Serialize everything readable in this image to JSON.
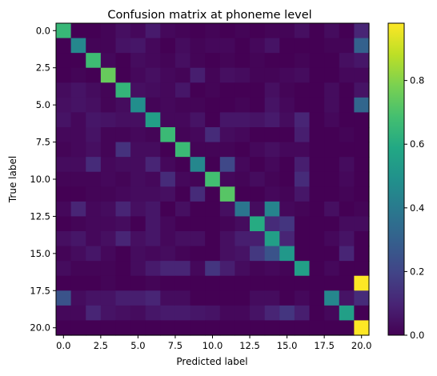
{
  "chart_data": {
    "type": "heatmap",
    "title": "Confusion matrix at phoneme level",
    "xlabel": "Predicted label",
    "ylabel": "True label",
    "n_classes": 21,
    "x_ticks": [
      0.0,
      2.5,
      5.0,
      7.5,
      10.0,
      12.5,
      15.0,
      17.5,
      20.0
    ],
    "y_ticks": [
      0.0,
      2.5,
      5.0,
      7.5,
      10.0,
      12.5,
      15.0,
      17.5,
      20.0
    ],
    "x_tick_labels": [
      "0.0",
      "2.5",
      "5.0",
      "7.5",
      "10.0",
      "12.5",
      "15.0",
      "17.5",
      "20.0"
    ],
    "y_tick_labels": [
      "0.0",
      "2.5",
      "5.0",
      "7.5",
      "10.0",
      "12.5",
      "15.0",
      "17.5",
      "20.0"
    ],
    "colormap": "viridis",
    "vmin": 0.0,
    "vmax": 0.98,
    "colorbar_ticks": [
      0.0,
      0.2,
      0.4,
      0.6,
      0.8
    ],
    "colorbar_tick_labels": [
      "0.0",
      "0.2",
      "0.4",
      "0.6",
      "0.8"
    ],
    "matrix": [
      [
        0.65,
        0.0,
        0.0,
        0.01,
        0.04,
        0.02,
        0.07,
        0.02,
        0.01,
        0.0,
        0.01,
        0.0,
        0.01,
        0.0,
        0.01,
        0.01,
        0.04,
        0.0,
        0.03,
        0.0,
        0.1
      ],
      [
        0.0,
        0.45,
        0.01,
        0.01,
        0.05,
        0.06,
        0.02,
        0.0,
        0.03,
        0.01,
        0.02,
        0.02,
        0.0,
        0.02,
        0.05,
        0.0,
        0.0,
        0.0,
        0.01,
        0.01,
        0.3
      ],
      [
        0.0,
        0.0,
        0.67,
        0.02,
        0.0,
        0.03,
        0.02,
        0.01,
        0.04,
        0.01,
        0.0,
        0.01,
        0.0,
        0.01,
        0.0,
        0.0,
        0.01,
        0.0,
        0.0,
        0.04,
        0.06
      ],
      [
        0.0,
        0.01,
        0.0,
        0.75,
        0.0,
        0.02,
        0.04,
        0.02,
        0.01,
        0.08,
        0.01,
        0.04,
        0.03,
        0.01,
        0.01,
        0.02,
        0.03,
        0.0,
        0.0,
        0.02,
        0.02
      ],
      [
        0.03,
        0.05,
        0.03,
        0.01,
        0.64,
        0.04,
        0.03,
        0.02,
        0.06,
        0.0,
        0.01,
        0.0,
        0.0,
        0.0,
        0.04,
        0.01,
        0.0,
        0.0,
        0.03,
        0.0,
        0.05
      ],
      [
        0.04,
        0.05,
        0.04,
        0.01,
        0.03,
        0.48,
        0.01,
        0.02,
        0.01,
        0.01,
        0.0,
        0.0,
        0.01,
        0.0,
        0.05,
        0.02,
        0.0,
        0.0,
        0.03,
        0.0,
        0.32
      ],
      [
        0.05,
        0.02,
        0.06,
        0.05,
        0.04,
        0.04,
        0.55,
        0.02,
        0.02,
        0.05,
        0.0,
        0.06,
        0.06,
        0.05,
        0.07,
        0.03,
        0.1,
        0.0,
        0.02,
        0.0,
        0.0
      ],
      [
        0.02,
        0.02,
        0.05,
        0.01,
        0.01,
        0.02,
        0.01,
        0.66,
        0.01,
        0.02,
        0.12,
        0.03,
        0.02,
        0.0,
        0.0,
        0.0,
        0.08,
        0.0,
        0.0,
        0.01,
        0.0
      ],
      [
        0.01,
        0.02,
        0.04,
        0.01,
        0.14,
        0.03,
        0.03,
        0.0,
        0.66,
        0.01,
        0.01,
        0.01,
        0.0,
        0.02,
        0.04,
        0.02,
        0.02,
        0.0,
        0.0,
        0.0,
        0.0
      ],
      [
        0.03,
        0.03,
        0.12,
        0.02,
        0.03,
        0.03,
        0.1,
        0.02,
        0.0,
        0.45,
        0.0,
        0.21,
        0.02,
        0.0,
        0.02,
        0.0,
        0.08,
        0.0,
        0.0,
        0.03,
        0.0
      ],
      [
        0.01,
        0.01,
        0.01,
        0.02,
        0.01,
        0.03,
        0.02,
        0.12,
        0.02,
        0.01,
        0.68,
        0.02,
        0.01,
        0.03,
        0.01,
        0.0,
        0.12,
        0.0,
        0.0,
        0.02,
        0.0
      ],
      [
        0.0,
        0.0,
        0.01,
        0.01,
        0.02,
        0.03,
        0.03,
        0.04,
        0.0,
        0.12,
        0.0,
        0.72,
        0.0,
        0.0,
        0.02,
        0.01,
        0.06,
        0.0,
        0.0,
        0.01,
        0.0
      ],
      [
        0.02,
        0.1,
        0.02,
        0.03,
        0.1,
        0.04,
        0.06,
        0.0,
        0.04,
        0.0,
        0.0,
        0.04,
        0.38,
        0.03,
        0.44,
        0.02,
        0.01,
        0.0,
        0.04,
        0.0,
        0.01
      ],
      [
        0.0,
        0.01,
        0.02,
        0.02,
        0.03,
        0.0,
        0.06,
        0.02,
        0.0,
        0.0,
        0.0,
        0.01,
        0.03,
        0.6,
        0.12,
        0.15,
        0.0,
        0.0,
        0.0,
        0.03,
        0.03
      ],
      [
        0.04,
        0.06,
        0.02,
        0.04,
        0.1,
        0.04,
        0.06,
        0.02,
        0.04,
        0.04,
        0.0,
        0.04,
        0.08,
        0.08,
        0.55,
        0.1,
        0.0,
        0.0,
        0.02,
        0.05,
        0.0
      ],
      [
        0.01,
        0.03,
        0.06,
        0.02,
        0.0,
        0.03,
        0.02,
        0.03,
        0.01,
        0.0,
        0.0,
        0.04,
        0.05,
        0.16,
        0.25,
        0.52,
        0.0,
        0.0,
        0.0,
        0.1,
        0.0
      ],
      [
        0.03,
        0.01,
        0.01,
        0.01,
        0.0,
        0.03,
        0.07,
        0.1,
        0.1,
        0.02,
        0.15,
        0.08,
        0.03,
        0.01,
        0.02,
        0.01,
        0.55,
        0.0,
        0.02,
        0.0,
        0.0
      ],
      [
        0.0,
        0.0,
        0.0,
        0.01,
        0.0,
        0.0,
        0.01,
        0.0,
        0.0,
        0.0,
        0.0,
        0.0,
        0.0,
        0.0,
        0.0,
        0.0,
        0.0,
        0.0,
        0.0,
        0.0,
        0.98
      ],
      [
        0.25,
        0.03,
        0.05,
        0.05,
        0.08,
        0.08,
        0.1,
        0.03,
        0.03,
        0.0,
        0.0,
        0.0,
        0.0,
        0.03,
        0.03,
        0.0,
        0.02,
        0.0,
        0.45,
        0.05,
        0.12
      ],
      [
        0.02,
        0.02,
        0.1,
        0.05,
        0.04,
        0.03,
        0.06,
        0.07,
        0.07,
        0.06,
        0.05,
        0.02,
        0.02,
        0.05,
        0.1,
        0.15,
        0.08,
        0.0,
        0.02,
        0.55,
        0.0
      ],
      [
        0.0,
        0.0,
        0.0,
        0.0,
        0.0,
        0.0,
        0.0,
        0.0,
        0.0,
        0.0,
        0.0,
        0.0,
        0.0,
        0.0,
        0.0,
        0.0,
        0.0,
        0.0,
        0.0,
        0.0,
        0.98
      ]
    ]
  }
}
